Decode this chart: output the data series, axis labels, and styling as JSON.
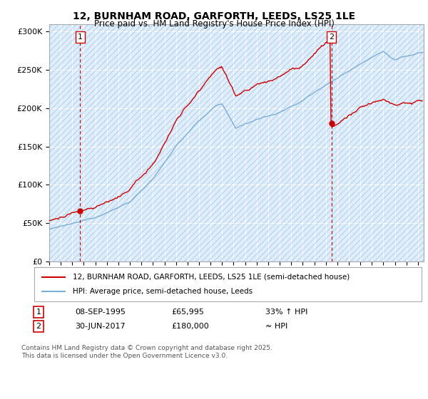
{
  "title_line1": "12, BURNHAM ROAD, GARFORTH, LEEDS, LS25 1LE",
  "title_line2": "Price paid vs. HM Land Registry's House Price Index (HPI)",
  "ylim": [
    0,
    310000
  ],
  "yticks": [
    0,
    50000,
    100000,
    150000,
    200000,
    250000,
    300000
  ],
  "ytick_labels": [
    "£0",
    "£50K",
    "£100K",
    "£150K",
    "£200K",
    "£250K",
    "£300K"
  ],
  "sale1_year": 1995,
  "sale1_month": 9,
  "sale1_day": 8,
  "sale1_price": 65995,
  "sale2_year": 2017,
  "sale2_month": 6,
  "sale2_day": 30,
  "sale2_price": 180000,
  "red_line_color": "#cc0000",
  "blue_line_color": "#7aafd4",
  "vline_color": "#cc0000",
  "bg_plot_color": "#ddeeff",
  "hatch_color": "#c8d8e8",
  "legend_entry1": "12, BURNHAM ROAD, GARFORTH, LEEDS, LS25 1LE (semi-detached house)",
  "legend_entry2": "HPI: Average price, semi-detached house, Leeds",
  "annotation1_date": "08-SEP-1995",
  "annotation1_price": "£65,995",
  "annotation1_hpi": "33% ↑ HPI",
  "annotation2_date": "30-JUN-2017",
  "annotation2_price": "£180,000",
  "annotation2_hpi": "≈ HPI",
  "footer": "Contains HM Land Registry data © Crown copyright and database right 2025.\nThis data is licensed under the Open Government Licence v3.0."
}
